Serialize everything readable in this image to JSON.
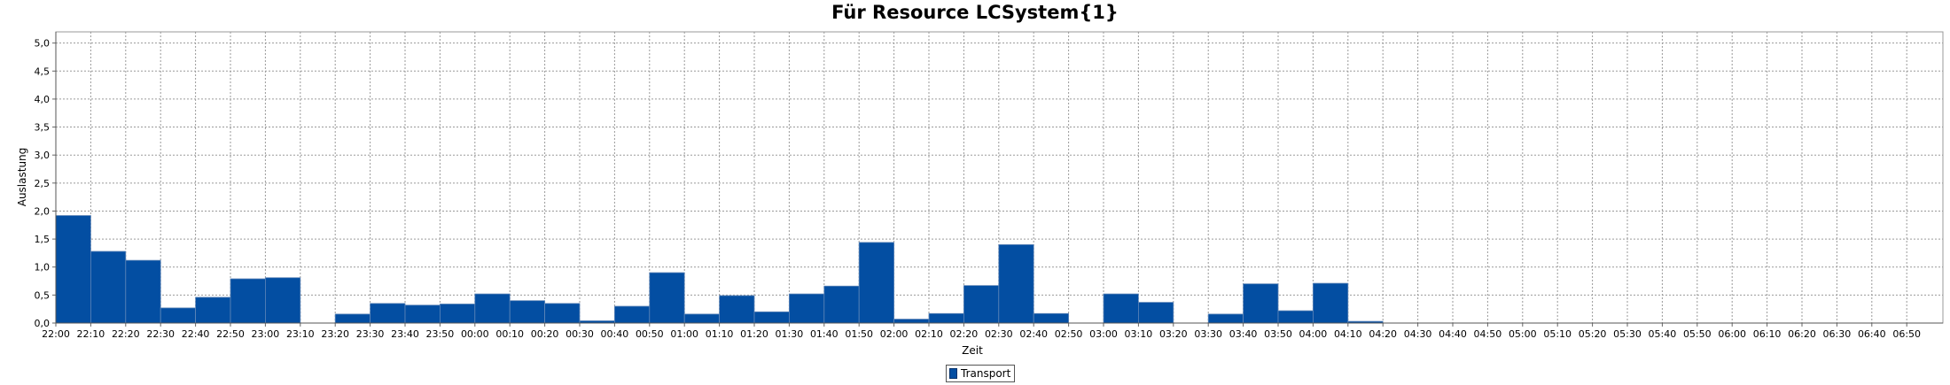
{
  "chart_data": {
    "type": "bar",
    "title": "Für Resource LCSystem{1}",
    "xlabel": "Zeit",
    "ylabel": "Auslastung",
    "ylim": [
      0,
      5.2
    ],
    "yticks": [
      "0,0",
      "0,5",
      "1,0",
      "1,5",
      "2,0",
      "2,5",
      "3,0",
      "3,5",
      "4,0",
      "4,5",
      "5,0"
    ],
    "grid": true,
    "legend_placement": "bottom",
    "bar_color": "#034EA2",
    "categories": [
      "22:00",
      "22:10",
      "22:20",
      "22:30",
      "22:40",
      "22:50",
      "23:00",
      "23:10",
      "23:20",
      "23:30",
      "23:40",
      "23:50",
      "00:00",
      "00:10",
      "00:20",
      "00:30",
      "00:40",
      "00:50",
      "01:00",
      "01:10",
      "01:20",
      "01:30",
      "01:40",
      "01:50",
      "02:00",
      "02:10",
      "02:20",
      "02:30",
      "02:40",
      "02:50",
      "03:00",
      "03:10",
      "03:20",
      "03:30",
      "03:40",
      "03:50",
      "04:00",
      "04:10",
      "04:20",
      "04:30",
      "04:40",
      "04:50",
      "05:00",
      "05:10",
      "05:20",
      "05:30",
      "05:40",
      "05:50",
      "06:00",
      "06:10",
      "06:20",
      "06:30",
      "06:40",
      "06:50"
    ],
    "series": [
      {
        "name": "Transport",
        "values": [
          1.92,
          1.28,
          1.12,
          0.27,
          0.46,
          0.79,
          0.81,
          0.0,
          0.16,
          0.35,
          0.32,
          0.34,
          0.52,
          0.4,
          0.35,
          0.04,
          0.3,
          0.9,
          0.16,
          0.49,
          0.2,
          0.52,
          0.66,
          1.44,
          0.07,
          0.17,
          0.67,
          1.4,
          0.17,
          0.0,
          0.52,
          0.37,
          0.0,
          0.16,
          0.7,
          0.22,
          0.71,
          0.03,
          0,
          0,
          0,
          0,
          0,
          0,
          0,
          0,
          0,
          0,
          0,
          0,
          0,
          0,
          0,
          0
        ]
      }
    ]
  }
}
